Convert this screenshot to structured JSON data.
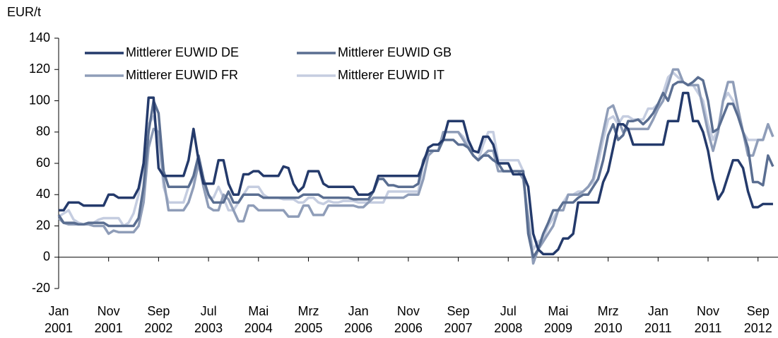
{
  "chart_data": {
    "type": "line",
    "y_label": "EUR/t",
    "categories": [
      "Jan 2001",
      null,
      null,
      null,
      null,
      null,
      null,
      null,
      null,
      null,
      "Nov 2001",
      null,
      null,
      null,
      null,
      null,
      null,
      null,
      null,
      null,
      "Sep 2002",
      null,
      null,
      null,
      null,
      null,
      null,
      null,
      null,
      null,
      "Jul 2003",
      null,
      null,
      null,
      null,
      null,
      null,
      null,
      null,
      null,
      "Mai 2004",
      null,
      null,
      null,
      null,
      null,
      null,
      null,
      null,
      null,
      "Mrz 2005",
      null,
      null,
      null,
      null,
      null,
      null,
      null,
      null,
      null,
      "Jan 2006",
      null,
      null,
      null,
      null,
      null,
      null,
      null,
      null,
      null,
      "Nov 2006",
      null,
      null,
      null,
      null,
      null,
      null,
      null,
      null,
      null,
      "Sep 2007",
      null,
      null,
      null,
      null,
      null,
      null,
      null,
      null,
      null,
      "Jul 2008",
      null,
      null,
      null,
      null,
      null,
      null,
      null,
      null,
      null,
      "Mai 2009",
      null,
      null,
      null,
      null,
      null,
      null,
      null,
      null,
      null,
      "Mrz 2010",
      null,
      null,
      null,
      null,
      null,
      null,
      null,
      null,
      null,
      "Jan 2011",
      null,
      null,
      null,
      null,
      null,
      null,
      null,
      null,
      null,
      "Nov 2011",
      null,
      null,
      null,
      null,
      null,
      null,
      null,
      null,
      null,
      "Sep 2012",
      null,
      null,
      null
    ],
    "series": [
      {
        "name": "Mittlerer EUWID DE",
        "color": "#243a6b",
        "values": [
          30,
          30,
          35,
          35,
          35,
          33,
          33,
          33,
          33,
          33,
          40,
          40,
          38,
          38,
          38,
          38,
          44,
          60,
          102,
          102,
          57,
          52,
          52,
          52,
          52,
          52,
          62,
          82,
          62,
          47,
          47,
          47,
          62,
          62,
          47,
          40,
          40,
          53,
          53,
          55,
          55,
          52,
          52,
          52,
          52,
          58,
          57,
          47,
          42,
          45,
          55,
          55,
          55,
          47,
          45,
          45,
          45,
          45,
          45,
          45,
          40,
          40,
          40,
          42,
          52,
          52,
          52,
          52,
          52,
          52,
          52,
          52,
          52,
          60,
          70,
          72,
          72,
          75,
          87,
          87,
          87,
          87,
          75,
          68,
          67,
          77,
          77,
          72,
          60,
          60,
          60,
          53,
          53,
          53,
          45,
          15,
          5,
          2,
          2,
          2,
          5,
          12,
          12,
          15,
          35,
          35,
          35,
          35,
          35,
          48,
          55,
          70,
          85,
          85,
          82,
          72,
          72,
          72,
          72,
          72,
          72,
          72,
          87,
          87,
          87,
          105,
          105,
          87,
          87,
          80,
          68,
          50,
          37,
          42,
          52,
          62,
          62,
          57,
          42,
          32,
          32,
          34,
          34,
          34
        ]
      },
      {
        "name": "Mittlerer EUWID GB",
        "color": "#5a6e91",
        "values": [
          27,
          22,
          22,
          22,
          21,
          21,
          22,
          22,
          22,
          22,
          20,
          20,
          20,
          20,
          20,
          20,
          25,
          45,
          80,
          100,
          92,
          55,
          45,
          45,
          45,
          45,
          45,
          52,
          65,
          50,
          40,
          35,
          35,
          35,
          42,
          35,
          35,
          40,
          40,
          40,
          40,
          38,
          38,
          38,
          38,
          38,
          38,
          38,
          38,
          40,
          40,
          40,
          40,
          38,
          38,
          38,
          38,
          38,
          38,
          37,
          37,
          37,
          37,
          42,
          50,
          50,
          46,
          46,
          45,
          45,
          45,
          45,
          47,
          62,
          68,
          68,
          68,
          75,
          75,
          75,
          72,
          72,
          70,
          65,
          62,
          65,
          65,
          62,
          60,
          55,
          55,
          55,
          55,
          55,
          15,
          0,
          5,
          15,
          22,
          30,
          30,
          35,
          35,
          35,
          38,
          40,
          40,
          45,
          50,
          62,
          78,
          85,
          75,
          78,
          87,
          87,
          88,
          85,
          88,
          92,
          98,
          105,
          100,
          110,
          112,
          112,
          110,
          112,
          115,
          113,
          100,
          80,
          82,
          90,
          98,
          98,
          90,
          80,
          70,
          48,
          48,
          46,
          65,
          58
        ]
      },
      {
        "name": "Mittlerer EUWID FR",
        "color": "#8f9db8",
        "values": [
          25,
          22,
          21,
          21,
          21,
          21,
          21,
          20,
          20,
          20,
          15,
          17,
          16,
          16,
          16,
          16,
          20,
          35,
          70,
          82,
          80,
          50,
          30,
          30,
          30,
          30,
          35,
          45,
          60,
          45,
          32,
          30,
          30,
          40,
          37,
          30,
          23,
          23,
          33,
          33,
          30,
          30,
          30,
          30,
          30,
          30,
          26,
          26,
          26,
          33,
          33,
          27,
          27,
          27,
          33,
          33,
          33,
          33,
          33,
          33,
          32,
          32,
          35,
          38,
          38,
          38,
          38,
          38,
          38,
          38,
          40,
          40,
          40,
          50,
          65,
          68,
          68,
          80,
          80,
          80,
          80,
          75,
          70,
          65,
          62,
          65,
          68,
          68,
          55,
          55,
          55,
          55,
          55,
          50,
          25,
          -4,
          5,
          10,
          15,
          20,
          30,
          30,
          40,
          40,
          40,
          42,
          45,
          50,
          65,
          80,
          95,
          97,
          88,
          80,
          82,
          82,
          82,
          82,
          82,
          88,
          95,
          100,
          110,
          120,
          120,
          112,
          110,
          110,
          110,
          95,
          80,
          68,
          80,
          100,
          112,
          112,
          95,
          80,
          65,
          65,
          75,
          75,
          85,
          77
        ]
      },
      {
        "name": "Mittlerer EUWID IT",
        "color": "#c5cde0",
        "values": [
          26,
          28,
          30,
          24,
          22,
          21,
          21,
          22,
          24,
          25,
          25,
          25,
          25,
          20,
          22,
          28,
          40,
          60,
          85,
          90,
          78,
          45,
          35,
          35,
          35,
          35,
          45,
          50,
          62,
          45,
          38,
          38,
          45,
          38,
          30,
          30,
          35,
          40,
          45,
          45,
          45,
          40,
          38,
          38,
          38,
          37,
          37,
          37,
          35,
          35,
          38,
          38,
          35,
          34,
          36,
          35,
          35,
          36,
          36,
          36,
          35,
          35,
          35,
          35,
          35,
          35,
          42,
          42,
          42,
          42,
          42,
          42,
          42,
          60,
          68,
          68,
          68,
          80,
          80,
          80,
          80,
          77,
          72,
          65,
          62,
          72,
          80,
          80,
          62,
          62,
          62,
          62,
          62,
          55,
          20,
          5,
          10,
          12,
          20,
          25,
          30,
          35,
          40,
          40,
          42,
          42,
          45,
          48,
          60,
          75,
          88,
          90,
          85,
          90,
          90,
          88,
          88,
          88,
          95,
          95,
          98,
          105,
          115,
          118,
          115,
          112,
          110,
          110,
          105,
          100,
          85,
          75,
          82,
          100,
          105,
          100,
          90,
          80,
          75,
          75,
          75,
          75,
          85,
          77
        ]
      }
    ],
    "ylim": [
      -20,
      140
    ],
    "yticks": [
      -20,
      0,
      20,
      40,
      60,
      80,
      100,
      120,
      140
    ],
    "grid": false,
    "legend": "top-left"
  }
}
